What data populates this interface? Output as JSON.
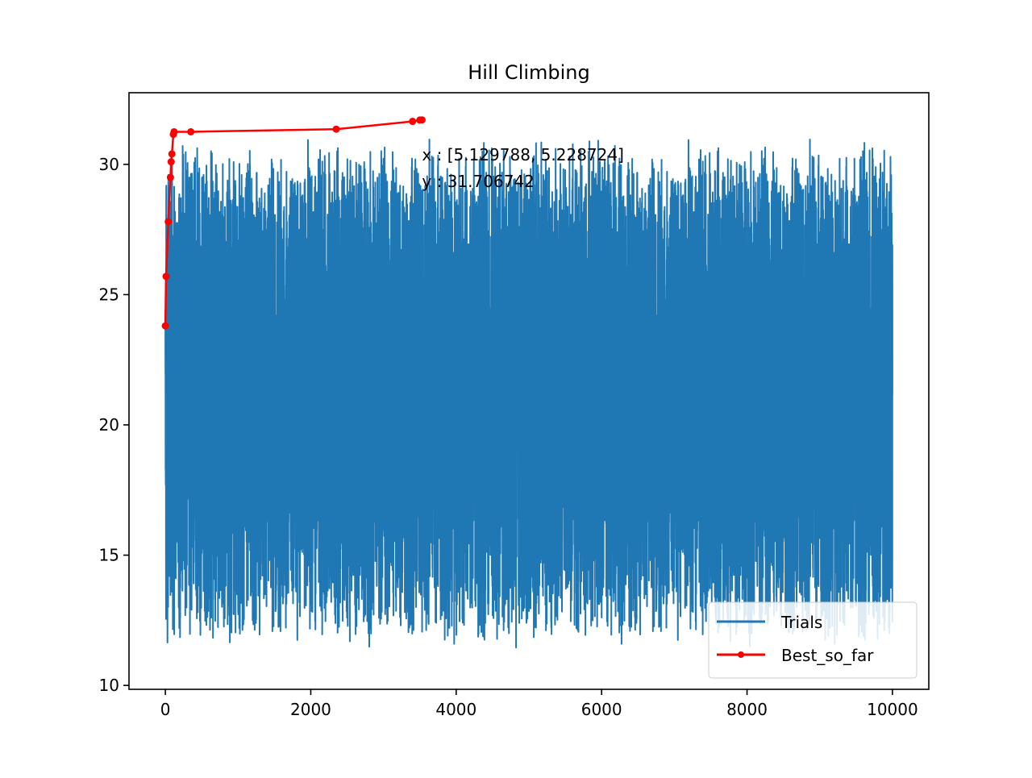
{
  "chart_data": {
    "type": "line",
    "title": "Hill Climbing",
    "xlabel": "",
    "ylabel": "",
    "xlim": [
      -500,
      10500
    ],
    "ylim": [
      9.85,
      32.75
    ],
    "xticks": [
      0,
      2000,
      4000,
      6000,
      8000,
      10000
    ],
    "xtick_labels": [
      "0",
      "2000",
      "4000",
      "6000",
      "8000",
      "10000"
    ],
    "yticks": [
      10,
      15,
      20,
      25,
      30
    ],
    "ytick_labels": [
      "10",
      "15",
      "20",
      "25",
      "30"
    ],
    "grid": false,
    "legend_position": "lower-right",
    "annotation": {
      "x_text": "x : [5.129788, 5.228724]",
      "y_text": "y : 31.706742",
      "anchor_x": 3530,
      "anchor_y": 30.15
    },
    "series": [
      {
        "name": "Trials",
        "color": "#1f77b4",
        "marker": "none",
        "n_points": 10000,
        "x_range": [
          0,
          10000
        ],
        "approx_min": 10.9,
        "approx_max": 31.6,
        "note_values_are_noisy_samples": true
      },
      {
        "name": "Best_so_far",
        "color": "#ff0000",
        "marker": "circle",
        "x": [
          0,
          10,
          40,
          70,
          80,
          90,
          110,
          120,
          350,
          2350,
          3400,
          3500,
          3530
        ],
        "y": [
          23.8,
          25.7,
          27.8,
          29.5,
          30.1,
          30.4,
          31.15,
          31.25,
          31.25,
          31.35,
          31.65,
          31.7,
          31.7067
        ]
      }
    ]
  }
}
